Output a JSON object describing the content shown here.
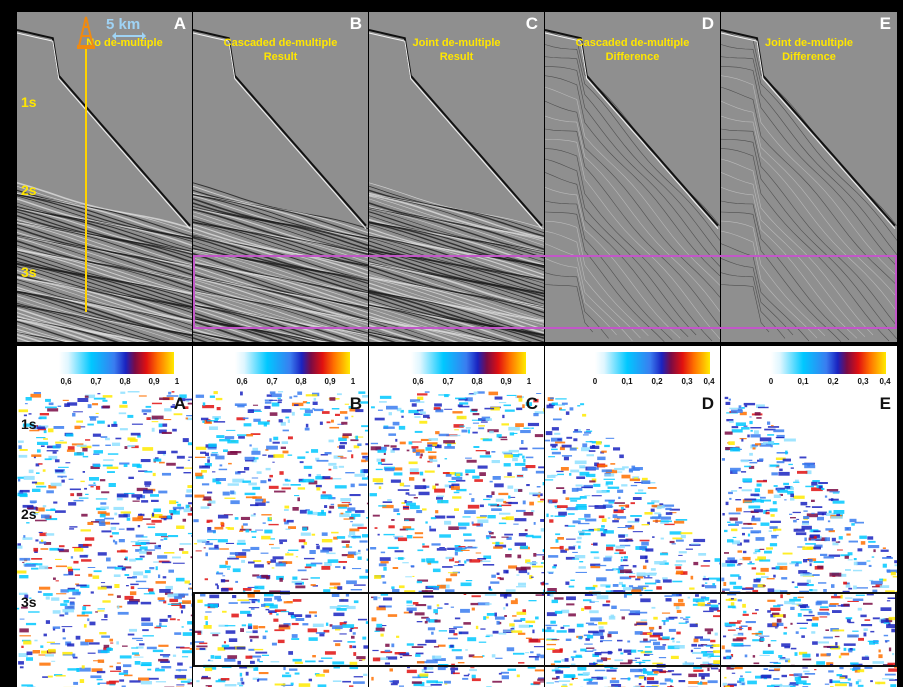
{
  "scale_label": "5 km",
  "time_labels": [
    "1s",
    "2s",
    "3s"
  ],
  "seismic_panels": [
    {
      "letter": "A",
      "title_lines": [
        "No de-multiple"
      ]
    },
    {
      "letter": "B",
      "title_lines": [
        "Cascaded de-multiple",
        "Result"
      ]
    },
    {
      "letter": "C",
      "title_lines": [
        "Joint de-multiple",
        "Result"
      ]
    },
    {
      "letter": "D",
      "title_lines": [
        "Cascaded de-multiple",
        "Difference"
      ]
    },
    {
      "letter": "E",
      "title_lines": [
        "Joint de-multiple",
        "Difference"
      ]
    }
  ],
  "coherence_panels": [
    {
      "letter": "A",
      "ticks": [
        "0,6",
        "0,7",
        "0,8",
        "0,9",
        "1"
      ]
    },
    {
      "letter": "B",
      "ticks": [
        "0,6",
        "0,7",
        "0,8",
        "0,9",
        "1"
      ]
    },
    {
      "letter": "C",
      "ticks": [
        "0,6",
        "0,7",
        "0,8",
        "0,9",
        "1"
      ]
    },
    {
      "letter": "D",
      "ticks": [
        "0",
        "0,1",
        "0,2",
        "0,3",
        "0,4"
      ]
    },
    {
      "letter": "E",
      "ticks": [
        "0",
        "0,1",
        "0,2",
        "0,3",
        "0,4"
      ]
    }
  ],
  "colors": {
    "title_yellow": "#ffe600",
    "highlight_box_top": "#c257c8",
    "highlight_box_bottom": "#111111",
    "scale_bar": "#9fd3f5"
  },
  "icons": {
    "well": "oil-derrick-icon"
  }
}
